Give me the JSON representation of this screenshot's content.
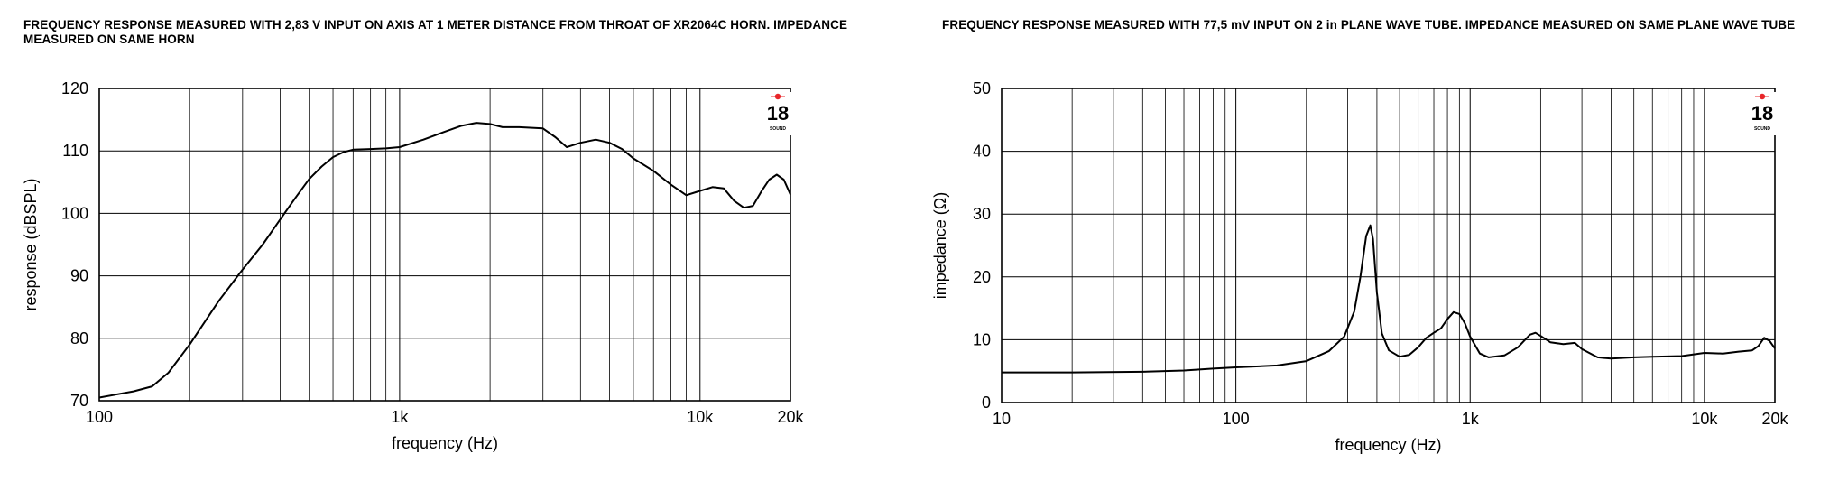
{
  "chart_data": [
    {
      "type": "line",
      "title": "FREQUENCY RESPONSE MEASURED WITH 2,83 V INPUT ON AXIS AT 1 METER DISTANCE FROM THROAT OF XR2064C HORN. IMPEDANCE MEASURED ON SAME HORN",
      "xlabel": "frequency (Hz)",
      "ylabel": "response (dBSPL)",
      "x_scale": "log",
      "xlim": [
        100,
        20000
      ],
      "ylim": [
        70,
        120
      ],
      "x_tick_values": [
        100,
        1000,
        10000,
        20000
      ],
      "x_tick_labels": [
        "100",
        "1k",
        "10k",
        "20k"
      ],
      "y_ticks": [
        70,
        80,
        90,
        100,
        110,
        120
      ],
      "grid": true,
      "logo": {
        "number": "18",
        "text": "SOUND"
      },
      "series": [
        {
          "x": [
            100,
            130,
            150,
            170,
            200,
            250,
            300,
            350,
            400,
            450,
            500,
            550,
            600,
            650,
            700,
            800,
            900,
            1000,
            1200,
            1400,
            1600,
            1800,
            2000,
            2200,
            2500,
            3000,
            3300,
            3600,
            4000,
            4500,
            5000,
            5500,
            6000,
            7000,
            8000,
            9000,
            10000,
            11000,
            12000,
            13000,
            14000,
            15000,
            16000,
            17000,
            18000,
            19000,
            20000
          ],
          "y": [
            70.5,
            71.5,
            72.3,
            74.5,
            79,
            86,
            91,
            95,
            99,
            102.5,
            105.5,
            107.5,
            109,
            109.8,
            110.2,
            110.3,
            110.4,
            110.6,
            111.8,
            113,
            114,
            114.5,
            114.3,
            113.8,
            113.8,
            113.6,
            112.2,
            110.6,
            111.3,
            111.8,
            111.3,
            110.3,
            108.8,
            106.8,
            104.6,
            102.9,
            103.6,
            104.2,
            104.0,
            102.0,
            100.9,
            101.2,
            103.5,
            105.4,
            106.2,
            105.4,
            103.0
          ]
        }
      ]
    },
    {
      "type": "line",
      "title": "FREQUENCY RESPONSE MEASURED WITH 77,5 mV INPUT ON 2 in PLANE WAVE TUBE. IMPEDANCE MEASURED ON SAME PLANE WAVE TUBE",
      "xlabel": "frequency (Hz)",
      "ylabel": "impedance (Ω)",
      "x_scale": "log",
      "xlim": [
        10,
        20000
      ],
      "ylim": [
        0,
        50
      ],
      "x_tick_values": [
        10,
        100,
        1000,
        10000,
        20000
      ],
      "x_tick_labels": [
        "10",
        "100",
        "1k",
        "10k",
        "20k"
      ],
      "y_ticks": [
        0,
        10,
        20,
        30,
        40,
        50
      ],
      "grid": true,
      "logo": {
        "number": "18",
        "text": "SOUND"
      },
      "series": [
        {
          "x": [
            10,
            20,
            40,
            60,
            80,
            100,
            150,
            200,
            250,
            290,
            320,
            340,
            360,
            375,
            385,
            400,
            420,
            450,
            500,
            550,
            600,
            650,
            700,
            750,
            800,
            850,
            900,
            950,
            1000,
            1100,
            1200,
            1400,
            1600,
            1800,
            1900,
            2000,
            2200,
            2500,
            2800,
            3000,
            3500,
            4000,
            5000,
            6000,
            8000,
            10000,
            12000,
            14000,
            16000,
            17000,
            18000,
            19000,
            20000
          ],
          "y": [
            4.8,
            4.8,
            4.9,
            5.1,
            5.4,
            5.6,
            5.9,
            6.6,
            8.2,
            10.5,
            14.5,
            20.0,
            26.5,
            28.2,
            26.0,
            17.5,
            11.0,
            8.3,
            7.3,
            7.6,
            8.8,
            10.3,
            11.1,
            11.8,
            13.3,
            14.4,
            14.1,
            12.6,
            10.5,
            7.8,
            7.2,
            7.5,
            8.8,
            10.8,
            11.1,
            10.6,
            9.6,
            9.3,
            9.5,
            8.5,
            7.2,
            7.0,
            7.2,
            7.3,
            7.4,
            7.9,
            7.8,
            8.1,
            8.3,
            9.0,
            10.3,
            9.8,
            8.6
          ]
        }
      ]
    }
  ]
}
